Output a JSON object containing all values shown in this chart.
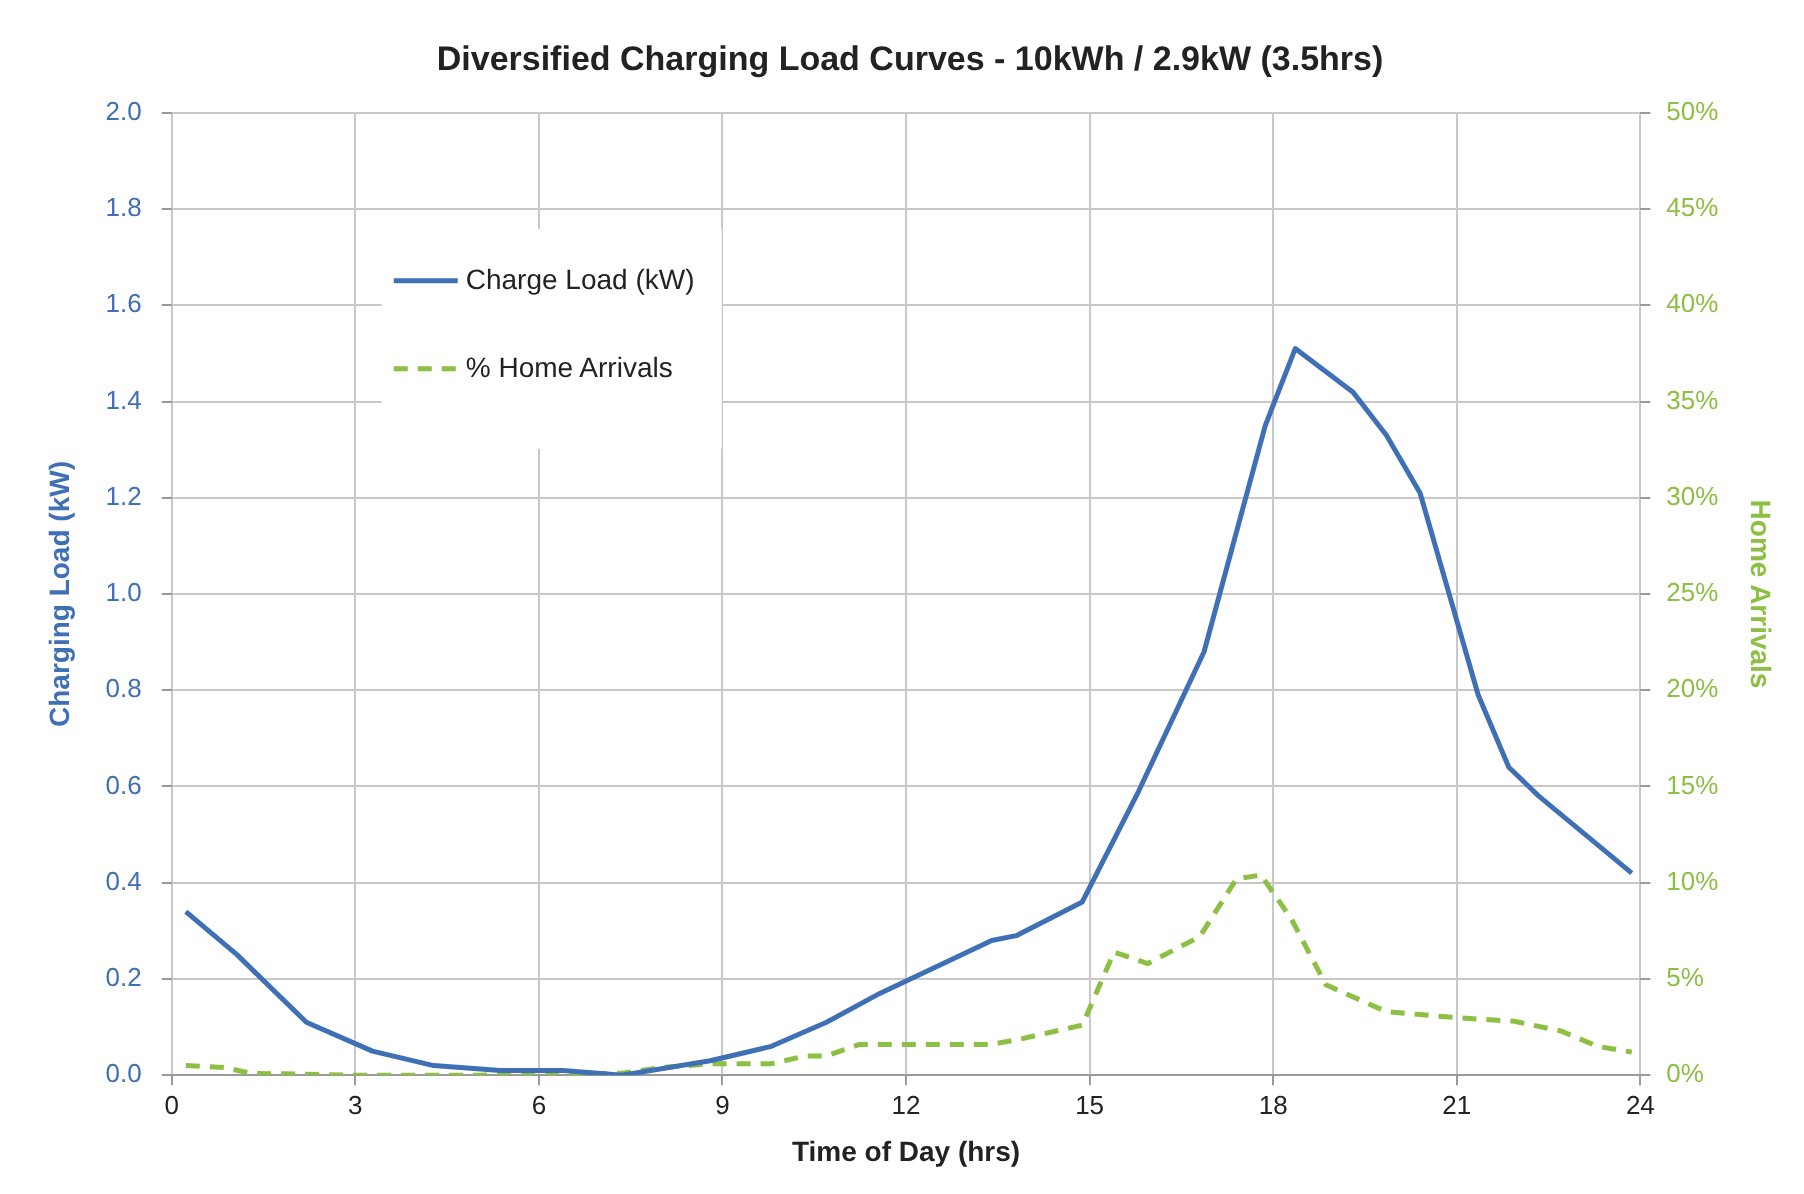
{
  "chart_data": {
    "type": "line",
    "title": "Diversified Charging Load Curves - 10kWh / 2.9kW (3.5hrs)",
    "xlabel": "Time of Day (hrs)",
    "ylabel": "Charging Load (kW)",
    "y2label": "Home Arrivals",
    "xlim": [
      0,
      24
    ],
    "xticks": [
      0,
      3,
      6,
      9,
      12,
      15,
      18,
      21,
      24
    ],
    "ylim": [
      0,
      2
    ],
    "yticks": [
      {
        "value": 0,
        "label": "0.0"
      },
      {
        "value": 0.2,
        "label": "0.2"
      },
      {
        "value": 0.4,
        "label": "0.4"
      },
      {
        "value": 0.6,
        "label": "0.6"
      },
      {
        "value": 0.8,
        "label": "0.8"
      },
      {
        "value": 1,
        "label": "1.0"
      },
      {
        "value": 1.2,
        "label": "1.2"
      },
      {
        "value": 1.4,
        "label": "1.4"
      },
      {
        "value": 1.6,
        "label": "1.6"
      },
      {
        "value": 1.8,
        "label": "1.8"
      },
      {
        "value": 2,
        "label": "2.0"
      }
    ],
    "y2lim": [
      0,
      50
    ],
    "y2ticks": [
      {
        "value": 0,
        "label": "0%"
      },
      {
        "value": 5,
        "label": "5%"
      },
      {
        "value": 10,
        "label": "10%"
      },
      {
        "value": 15,
        "label": "15%"
      },
      {
        "value": 20,
        "label": "20%"
      },
      {
        "value": 25,
        "label": "25%"
      },
      {
        "value": 30,
        "label": "30%"
      },
      {
        "value": 35,
        "label": "35%"
      },
      {
        "value": 40,
        "label": "40%"
      },
      {
        "value": 45,
        "label": "45%"
      },
      {
        "value": 50,
        "label": "50%"
      }
    ],
    "grid": true,
    "legend": "top left",
    "marker": "none",
    "series": [
      {
        "name": "Charge Load (kW)",
        "color": "#3f6fb5",
        "line_style": "solid",
        "x": [
          0.23,
          1.07,
          2.2,
          3.28,
          4.28,
          5.37,
          6.4,
          7.36,
          8.8,
          9.8,
          10.7,
          11.57,
          12.9,
          13.4,
          13.8,
          14.88,
          15.8,
          16.87,
          17.87,
          18.36,
          19.3,
          19.85,
          20.4,
          21.35,
          21.85,
          22.34,
          23.86
        ],
        "values": [
          0.34,
          0.25,
          0.11,
          0.05,
          0.02,
          0.01,
          0.01,
          0.0,
          0.03,
          0.06,
          0.11,
          0.17,
          0.25,
          0.28,
          0.29,
          0.36,
          0.59,
          0.88,
          1.35,
          1.51,
          1.42,
          1.33,
          1.21,
          0.79,
          0.64,
          0.58,
          0.42
        ]
      },
      {
        "name": "% Home Arrivals",
        "color": "#8cbf44",
        "line_style": "dashed",
        "axis": "y2",
        "x": [
          0.23,
          0.85,
          1.3,
          3,
          5,
          7.36,
          8.0,
          8.9,
          9.8,
          10.35,
          10.7,
          11.24,
          12.9,
          13.4,
          13.9,
          14.88,
          15.4,
          15.95,
          16.8,
          17.4,
          17.8,
          18.3,
          18.86,
          19.85,
          20.95,
          21.94,
          22.7,
          23.3,
          23.86
        ],
        "values": [
          0.5,
          0.4,
          0.1,
          0,
          0,
          0.1,
          0.4,
          0.6,
          0.6,
          1.0,
          1.0,
          1.6,
          1.6,
          1.6,
          1.9,
          2.6,
          6.4,
          5.8,
          7.2,
          10.2,
          10.4,
          8.1,
          4.7,
          3.3,
          3.0,
          2.8,
          2.3,
          1.5,
          1.2
        ]
      }
    ]
  }
}
